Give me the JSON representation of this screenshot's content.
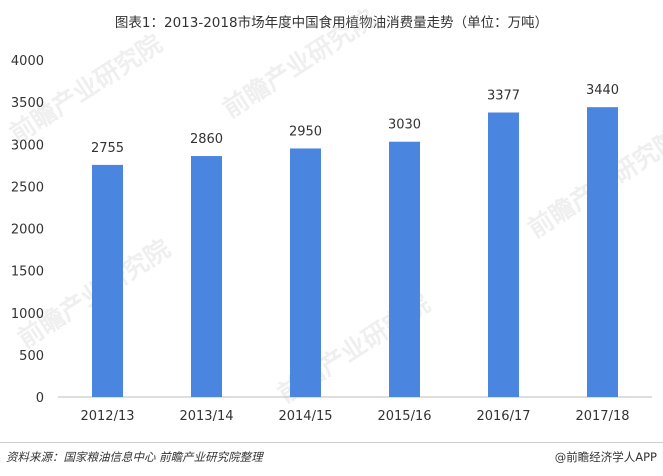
{
  "title": "图表1：2013-2018市场年度中国食用植物油消费量走势（单位：万吨）",
  "chart_data": {
    "type": "bar",
    "categories": [
      "2012/13",
      "2013/14",
      "2014/15",
      "2015/16",
      "2016/17",
      "2017/18"
    ],
    "values": [
      2755,
      2860,
      2950,
      3030,
      3377,
      3440
    ],
    "ylim": [
      0,
      4000
    ],
    "yticks": [
      0,
      500,
      1000,
      1500,
      2000,
      2500,
      3000,
      3500,
      4000
    ],
    "data_labels": true,
    "grid": false,
    "bar_color": "#4a86e0"
  },
  "watermark": "前瞻产业研究院",
  "footer": {
    "source": "资料来源：国家粮油信息中心 前瞻产业研究院整理",
    "brand": "@前瞻经济学人APP"
  }
}
